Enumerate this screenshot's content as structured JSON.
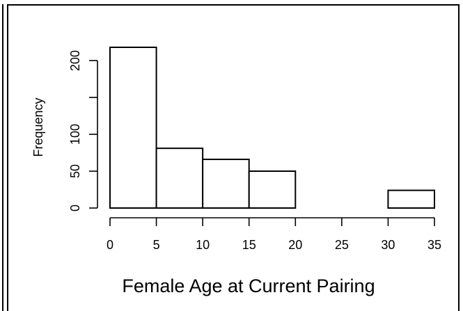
{
  "chart_data": {
    "type": "bar",
    "subtype": "histogram",
    "bins": [
      [
        0,
        5
      ],
      [
        5,
        10
      ],
      [
        10,
        15
      ],
      [
        15,
        20
      ],
      [
        20,
        25
      ],
      [
        25,
        30
      ],
      [
        30,
        35
      ]
    ],
    "values": [
      218,
      81,
      66,
      50,
      0,
      0,
      24
    ],
    "xticks": [
      "0",
      "5",
      "10",
      "15",
      "20",
      "25",
      "30",
      "35"
    ],
    "yticks": [
      "0",
      "50",
      "100",
      "",
      "200"
    ],
    "ytick_values": [
      0,
      50,
      100,
      150,
      200
    ],
    "xlim": [
      0,
      35
    ],
    "ylim": [
      0,
      218
    ],
    "ylabel": "Frequency",
    "xlabel": "Female Age at Current Pairing",
    "grid": false
  }
}
